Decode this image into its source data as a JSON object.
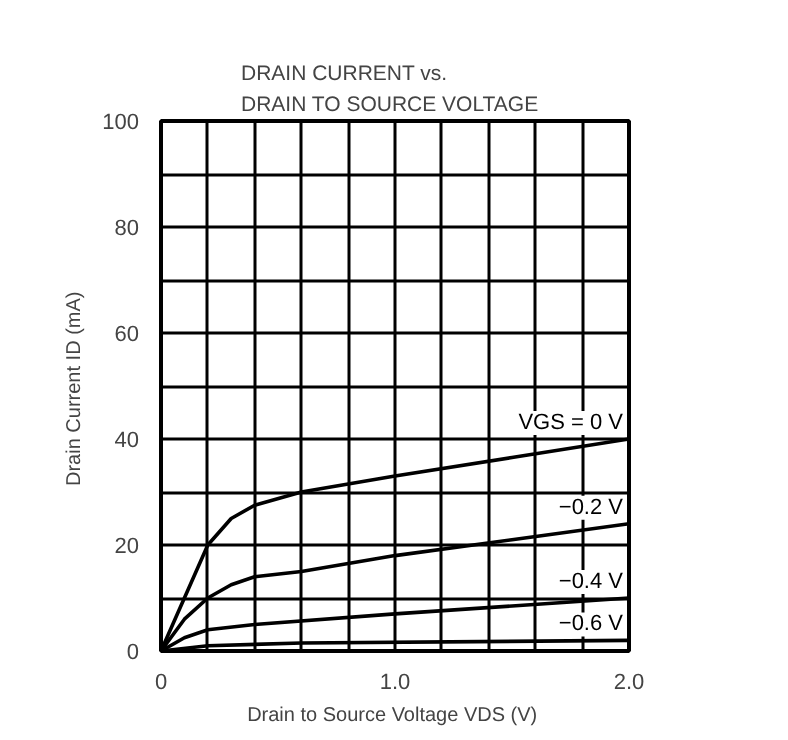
{
  "chart_data": {
    "type": "line",
    "title": "DRAIN CURRENT vs.\nDRAIN TO SOURCE VOLTAGE",
    "xlabel": "Drain to Source Voltage  VDS (V)",
    "ylabel": "Drain Current  ID (mA)",
    "xlim": [
      0,
      2.0
    ],
    "ylim": [
      0,
      100
    ],
    "xticks": [
      {
        "value": 0,
        "label": "0"
      },
      {
        "value": 0.2,
        "label": null
      },
      {
        "value": 0.4,
        "label": null
      },
      {
        "value": 0.6,
        "label": null
      },
      {
        "value": 0.8,
        "label": null
      },
      {
        "value": 1.0,
        "label": "1.0"
      },
      {
        "value": 1.2,
        "label": null
      },
      {
        "value": 1.4,
        "label": null
      },
      {
        "value": 1.6,
        "label": null
      },
      {
        "value": 1.8,
        "label": null
      },
      {
        "value": 2.0,
        "label": "2.0"
      }
    ],
    "yticks": [
      0,
      {
        "value": 10,
        "label": null
      },
      20,
      {
        "value": 30,
        "label": null
      },
      40,
      {
        "value": 50,
        "label": null
      },
      60,
      {
        "value": 70,
        "label": null
      },
      80,
      {
        "value": 90,
        "label": null
      },
      100
    ],
    "grid": true,
    "marker": "none",
    "line_style": "solid",
    "series": [
      {
        "name": "VGS = 0 V",
        "color": "#000000",
        "x": [
          0,
          0.1,
          0.2,
          0.3,
          0.4,
          0.6,
          1.0,
          1.5,
          2.0
        ],
        "values": [
          0,
          10,
          20,
          25,
          27.5,
          30,
          33,
          36.5,
          40
        ]
      },
      {
        "name": "−0.2 V",
        "color": "#000000",
        "x": [
          0,
          0.1,
          0.2,
          0.3,
          0.4,
          0.6,
          1.0,
          1.5,
          2.0
        ],
        "values": [
          0,
          6,
          10,
          12.5,
          14,
          15,
          18,
          21,
          24
        ]
      },
      {
        "name": "−0.4 V",
        "color": "#000000",
        "x": [
          0,
          0.1,
          0.2,
          0.4,
          1.0,
          1.5,
          2.0
        ],
        "values": [
          0,
          2.5,
          4,
          5,
          7,
          8.5,
          10
        ]
      },
      {
        "name": "−0.6 V",
        "color": "#000000",
        "x": [
          0,
          0.2,
          0.6,
          2.0
        ],
        "values": [
          0,
          1,
          1.5,
          2
        ]
      }
    ]
  }
}
